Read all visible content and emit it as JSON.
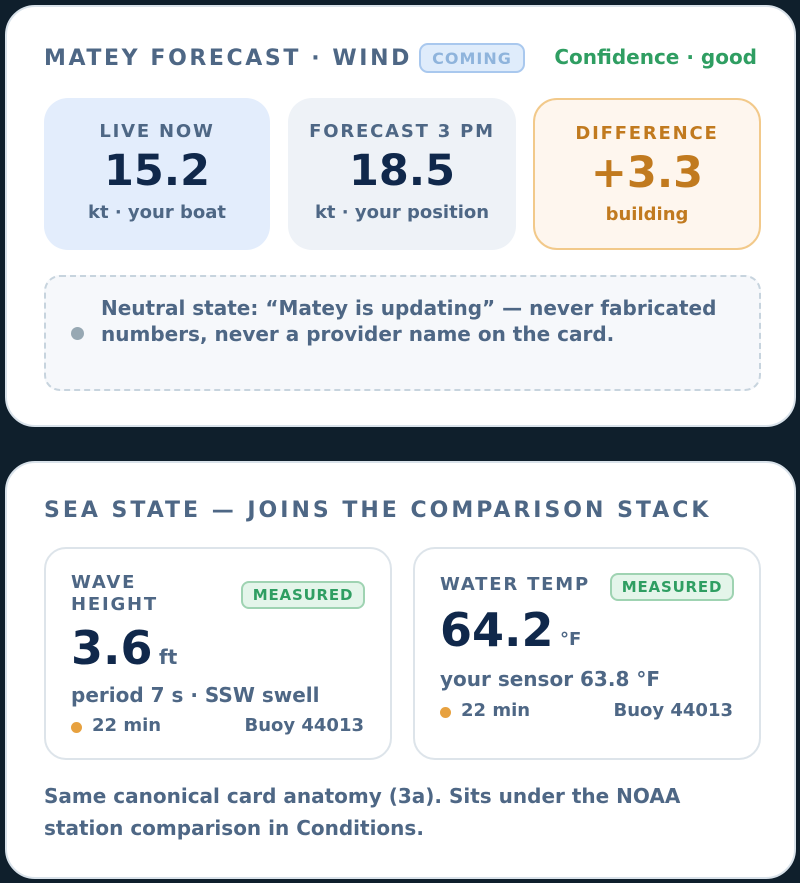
{
  "wind_card": {
    "title": "MATEY FORECAST · WIND",
    "status_badge": "COMING",
    "confidence": "Confidence · good",
    "stats": {
      "live": {
        "label": "LIVE NOW",
        "value": "15.2",
        "sub": "kt · your boat"
      },
      "forecast": {
        "label": "FORECAST 3 PM",
        "value": "18.5",
        "sub": "kt · your position"
      },
      "difference": {
        "label": "DIFFERENCE",
        "value": "+3.3",
        "sub": "building"
      }
    },
    "neutral_note": "Neutral state: “Matey is updating” — never fabricated numbers, never a provider name on the card."
  },
  "sea_card": {
    "title": "SEA STATE — JOINS THE COMPARISON STACK",
    "wave": {
      "label_line1": "WAVE",
      "label_line2": "HEIGHT",
      "badge": "MEASURED",
      "value": "3.6",
      "unit": "ft",
      "detail": "period 7 s · SSW swell",
      "age": "22 min",
      "source": "Buoy 44013"
    },
    "water_temp": {
      "label": "WATER TEMP",
      "badge": "MEASURED",
      "value": "64.2",
      "unit": "°F",
      "detail": "your sensor 63.8 °F",
      "age": "22 min",
      "source": "Buoy 44013"
    },
    "footnote": "Same canonical card anatomy (3a). Sits under the NOAA station comparison in Conditions."
  },
  "colors": {
    "background": "#0f1f2c",
    "label_slate": "#4e6785",
    "value_navy": "#10284b",
    "confidence_green": "#2f9e62",
    "difference_amber": "#c17a1f",
    "age_dot": "#e7a13f"
  }
}
